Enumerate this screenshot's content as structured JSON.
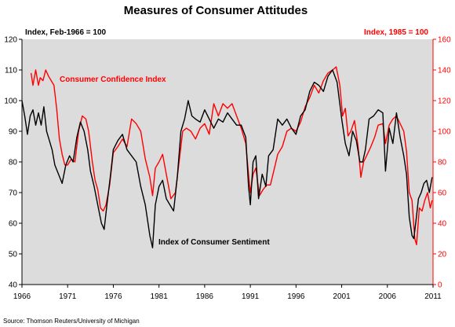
{
  "chart_data": {
    "type": "line",
    "title": "Measures of Consumer Attitudes",
    "left_axis_label": "Index, Feb-1966 = 100",
    "right_axis_label": "Index, 1985 = 100",
    "source": "Source: Thomson Reuters/University of Michigan",
    "ylim_left": [
      40,
      120
    ],
    "ylim_right": [
      0,
      160
    ],
    "xlim": [
      1966,
      2011
    ],
    "y_left_ticks": [
      "40",
      "50",
      "60",
      "70",
      "80",
      "90",
      "100",
      "110",
      "120"
    ],
    "y_right_ticks": [
      "0",
      "20",
      "40",
      "60",
      "80",
      "100",
      "120",
      "140",
      "160"
    ],
    "x_ticks": [
      "1966",
      "1971",
      "1976",
      "1981",
      "1986",
      "1991",
      "1996",
      "2001",
      "2006",
      "2011"
    ],
    "grid": false,
    "colors": {
      "sentiment": "#000000",
      "confidence": "#ff0000",
      "plot_bg": "#dcdcdc",
      "right_axis": "#ff0000"
    },
    "series": [
      {
        "name": "Index of Consumer Sentiment",
        "axis": "left",
        "x": [
          1966.0,
          1966.3,
          1966.6,
          1966.9,
          1967.2,
          1967.5,
          1967.8,
          1968.1,
          1968.4,
          1968.7,
          1969.0,
          1969.3,
          1969.6,
          1970.0,
          1970.4,
          1970.8,
          1971.2,
          1971.6,
          1972.0,
          1972.4,
          1972.8,
          1973.2,
          1973.5,
          1973.9,
          1974.3,
          1974.7,
          1975.0,
          1975.3,
          1975.7,
          1976.0,
          1976.5,
          1977.0,
          1977.5,
          1978.0,
          1978.5,
          1979.0,
          1979.5,
          1980.0,
          1980.3,
          1980.6,
          1981.0,
          1981.4,
          1981.8,
          1982.2,
          1982.6,
          1983.0,
          1983.4,
          1983.8,
          1984.2,
          1984.6,
          1985.0,
          1985.5,
          1986.0,
          1986.5,
          1987.0,
          1987.5,
          1988.0,
          1988.5,
          1989.0,
          1989.5,
          1990.0,
          1990.5,
          1990.8,
          1991.0,
          1991.3,
          1991.6,
          1991.9,
          1992.3,
          1992.7,
          1993.0,
          1993.5,
          1994.0,
          1994.5,
          1995.0,
          1995.5,
          1996.0,
          1996.5,
          1997.0,
          1997.5,
          1998.0,
          1998.5,
          1999.0,
          1999.5,
          2000.0,
          2000.5,
          2001.0,
          2001.4,
          2001.8,
          2002.2,
          2002.6,
          2003.0,
          2003.3,
          2003.6,
          2004.0,
          2004.5,
          2005.0,
          2005.5,
          2005.8,
          2006.2,
          2006.6,
          2007.0,
          2007.4,
          2007.8,
          2008.1,
          2008.4,
          2008.7,
          2008.9,
          2009.1,
          2009.4,
          2009.7,
          2010.0,
          2010.3,
          2010.6,
          2010.9
        ],
        "values": [
          100,
          95,
          89,
          95,
          97,
          92,
          96,
          92,
          98,
          90,
          87,
          84,
          79,
          76,
          73,
          79,
          82,
          80,
          88,
          93,
          90,
          84,
          77,
          72,
          66,
          60,
          58,
          66,
          76,
          84,
          87,
          89,
          84,
          82,
          80,
          72,
          66,
          56,
          52,
          66,
          72,
          74,
          68,
          66,
          64,
          75,
          90,
          94,
          100,
          95,
          94,
          93,
          97,
          94,
          91,
          94,
          93,
          96,
          94,
          92,
          92,
          88,
          72,
          66,
          80,
          82,
          68,
          76,
          72,
          82,
          84,
          94,
          92,
          94,
          91,
          89,
          95,
          97,
          103,
          106,
          105,
          103,
          108,
          110,
          106,
          94,
          86,
          82,
          90,
          87,
          80,
          80,
          84,
          94,
          95,
          97,
          96,
          77,
          91,
          86,
          96,
          88,
          82,
          76,
          62,
          56,
          55,
          60,
          68,
          70,
          73,
          74,
          70,
          75
        ]
      },
      {
        "name": "Consumer Confidence Index",
        "axis": "right",
        "x": [
          1967.0,
          1967.2,
          1967.5,
          1967.8,
          1968.0,
          1968.3,
          1968.6,
          1968.9,
          1969.2,
          1969.5,
          1969.8,
          1970.1,
          1970.4,
          1970.7,
          1971.0,
          1971.4,
          1971.8,
          1972.2,
          1972.6,
          1973.0,
          1973.3,
          1973.7,
          1974.0,
          1974.3,
          1974.6,
          1974.9,
          1975.2,
          1975.6,
          1976.0,
          1976.5,
          1977.0,
          1977.5,
          1978.0,
          1978.5,
          1979.0,
          1979.5,
          1980.0,
          1980.3,
          1980.6,
          1981.0,
          1981.4,
          1981.8,
          1982.3,
          1982.8,
          1983.2,
          1983.6,
          1984.0,
          1984.5,
          1985.0,
          1985.5,
          1986.0,
          1986.5,
          1987.0,
          1987.5,
          1988.0,
          1988.5,
          1989.0,
          1989.5,
          1990.0,
          1990.5,
          1990.8,
          1991.0,
          1991.3,
          1991.6,
          1992.0,
          1992.4,
          1992.8,
          1993.2,
          1993.6,
          1994.0,
          1994.5,
          1995.0,
          1995.5,
          1996.0,
          1996.5,
          1997.0,
          1997.5,
          1998.0,
          1998.5,
          1999.0,
          1999.5,
          2000.0,
          2000.4,
          2000.8,
          2001.1,
          2001.4,
          2001.7,
          2002.0,
          2002.4,
          2002.8,
          2003.1,
          2003.4,
          2003.8,
          2004.2,
          2004.6,
          2005.0,
          2005.5,
          2005.8,
          2006.2,
          2006.6,
          2007.0,
          2007.4,
          2007.8,
          2008.1,
          2008.4,
          2008.7,
          2009.0,
          2009.2,
          2009.5,
          2009.8,
          2010.1,
          2010.4,
          2010.7,
          2010.9
        ],
        "values": [
          138,
          130,
          140,
          130,
          135,
          133,
          140,
          136,
          133,
          130,
          115,
          95,
          85,
          78,
          78,
          82,
          80,
          100,
          110,
          108,
          100,
          80,
          68,
          62,
          50,
          48,
          52,
          65,
          86,
          90,
          95,
          90,
          108,
          105,
          100,
          82,
          70,
          58,
          76,
          80,
          85,
          72,
          56,
          60,
          80,
          100,
          102,
          100,
          95,
          102,
          105,
          98,
          118,
          110,
          118,
          115,
          118,
          110,
          102,
          92,
          72,
          60,
          72,
          76,
          58,
          62,
          65,
          65,
          75,
          85,
          90,
          100,
          102,
          100,
          106,
          116,
          122,
          130,
          125,
          133,
          138,
          140,
          142,
          130,
          110,
          115,
          97,
          100,
          107,
          90,
          70,
          80,
          85,
          90,
          96,
          104,
          105,
          92,
          104,
          108,
          110,
          105,
          100,
          87,
          60,
          55,
          30,
          26,
          50,
          48,
          55,
          60,
          50,
          55
        ]
      }
    ],
    "annotations": [
      {
        "text": "Consumer Confidence Index",
        "series": "Consumer Confidence Index"
      },
      {
        "text": "Index of Consumer Sentiment",
        "series": "Index of Consumer Sentiment"
      }
    ]
  }
}
